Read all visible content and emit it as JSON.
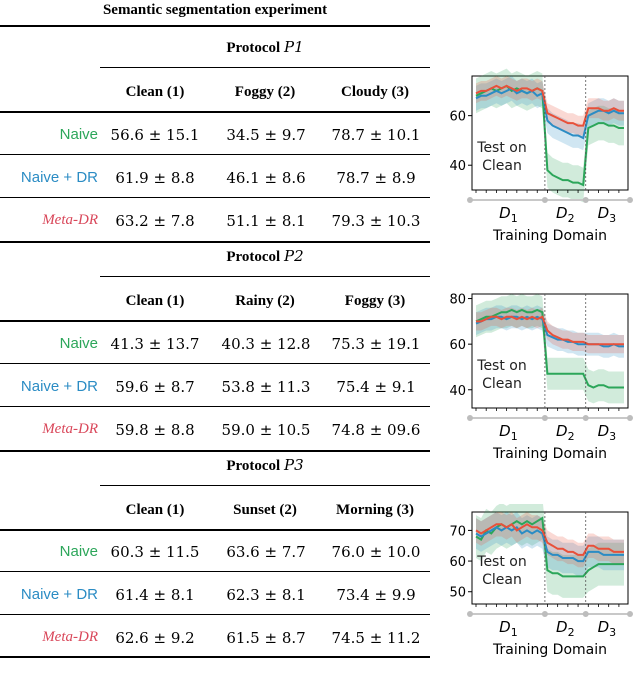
{
  "title": "Semantic segmentation experiment",
  "protocols": [
    {
      "label": "Protocol",
      "var": "P1",
      "columns": [
        "Clean (1)",
        "Foggy (2)",
        "Cloudy (3)"
      ],
      "rows": [
        {
          "method": "Naive",
          "cells": [
            "56.6 ± 15.1",
            "34.5 ± 9.7",
            "78.7 ± 10.1"
          ]
        },
        {
          "method": "Naive + DR",
          "cells": [
            "61.9 ± 8.8",
            "46.1 ± 8.6",
            "78.7 ± 8.9"
          ]
        },
        {
          "method": "Meta-DR",
          "cells": [
            "63.2 ± 7.8",
            "51.1 ± 8.1",
            "79.3 ± 10.3"
          ]
        }
      ]
    },
    {
      "label": "Protocol",
      "var": "P2",
      "columns": [
        "Clean (1)",
        "Rainy (2)",
        "Foggy (3)"
      ],
      "rows": [
        {
          "method": "Naive",
          "cells": [
            "41.3 ± 13.7",
            "40.3 ± 12.8",
            "75.3 ± 19.1"
          ]
        },
        {
          "method": "Naive + DR",
          "cells": [
            "59.6 ± 8.7",
            "53.8 ± 11.3",
            "75.4 ± 9.1"
          ]
        },
        {
          "method": "Meta-DR",
          "cells": [
            "59.8 ± 8.8",
            "59.0 ± 10.5",
            "74.8 ± 09.6"
          ]
        }
      ]
    },
    {
      "label": "Protocol",
      "var": "P3",
      "columns": [
        "Clean (1)",
        "Sunset (2)",
        "Morning (3)"
      ],
      "rows": [
        {
          "method": "Naive",
          "cells": [
            "60.3 ± 11.5",
            "63.6 ± 7.7",
            "76.0 ± 10.0"
          ]
        },
        {
          "method": "Naive + DR",
          "cells": [
            "61.4 ± 8.1",
            "62.3 ± 8.1",
            "73.4 ± 9.9"
          ]
        },
        {
          "method": "Meta-DR",
          "cells": [
            "62.6 ± 9.2",
            "61.5 ± 8.7",
            "74.5 ± 11.2"
          ]
        }
      ]
    }
  ],
  "colors": {
    "naive": "#2ca65a",
    "naive_dr": "#2b8cc4",
    "meta_dr": "#d9475a",
    "meta_line": "#e8503a"
  },
  "chart_data": [
    {
      "type": "line",
      "xlabel": "Training Domain",
      "domain_labels": [
        "D1",
        "D2",
        "D3"
      ],
      "annotation": "Test on\nClean",
      "yticks": [
        40,
        60
      ],
      "ylim": [
        30,
        76
      ],
      "series": [
        {
          "key": "naive",
          "values": [
            68,
            69,
            70,
            71,
            70,
            71,
            72,
            70,
            71,
            70,
            69,
            70,
            71,
            70,
            38,
            36,
            35,
            34,
            34,
            33,
            33,
            32,
            55,
            56,
            57,
            57,
            56,
            56,
            55,
            55
          ]
        },
        {
          "key": "naive_dr",
          "values": [
            67,
            68,
            68,
            69,
            70,
            69,
            70,
            71,
            69,
            70,
            69,
            70,
            68,
            69,
            58,
            56,
            55,
            54,
            53,
            52,
            52,
            51,
            60,
            61,
            62,
            62,
            61,
            62,
            61,
            61
          ]
        },
        {
          "key": "meta_dr",
          "values": [
            69,
            70,
            70,
            71,
            72,
            71,
            72,
            71,
            70,
            71,
            71,
            70,
            71,
            70,
            61,
            60,
            59,
            58,
            57,
            57,
            56,
            56,
            63,
            63,
            63,
            62,
            62,
            63,
            62,
            62
          ]
        }
      ]
    },
    {
      "type": "line",
      "xlabel": "Training Domain",
      "domain_labels": [
        "D1",
        "D2",
        "D3"
      ],
      "annotation": "Test on\nClean",
      "yticks": [
        40,
        60,
        80
      ],
      "ylim": [
        32,
        82
      ],
      "series": [
        {
          "key": "naive",
          "values": [
            70,
            71,
            72,
            72,
            73,
            74,
            74,
            75,
            74,
            75,
            74,
            74,
            75,
            74,
            47,
            47,
            47,
            47,
            47,
            47,
            47,
            47,
            42,
            41,
            42,
            42,
            41,
            41,
            41,
            41
          ]
        },
        {
          "key": "naive_dr",
          "values": [
            69,
            70,
            71,
            71,
            72,
            72,
            71,
            72,
            72,
            71,
            72,
            71,
            72,
            71,
            64,
            63,
            62,
            62,
            61,
            61,
            60,
            60,
            60,
            60,
            60,
            59,
            59,
            60,
            59,
            59
          ]
        },
        {
          "key": "meta_dr",
          "values": [
            70,
            70,
            71,
            72,
            72,
            71,
            72,
            72,
            71,
            72,
            71,
            72,
            71,
            72,
            66,
            64,
            63,
            62,
            62,
            61,
            61,
            61,
            60,
            60,
            60,
            60,
            60,
            60,
            60,
            60
          ]
        }
      ]
    },
    {
      "type": "line",
      "xlabel": "Training Domain",
      "domain_labels": [
        "D1",
        "D2",
        "D3"
      ],
      "annotation": "Test on\nClean",
      "yticks": [
        50,
        60,
        70
      ],
      "ylim": [
        46,
        76
      ],
      "series": [
        {
          "key": "naive",
          "values": [
            68,
            67,
            70,
            69,
            71,
            72,
            71,
            72,
            73,
            72,
            73,
            72,
            73,
            74,
            57,
            56,
            56,
            55,
            55,
            55,
            55,
            55,
            57,
            58,
            59,
            59,
            59,
            59,
            59,
            59
          ]
        },
        {
          "key": "naive_dr",
          "values": [
            69,
            68,
            69,
            70,
            71,
            70,
            71,
            70,
            71,
            69,
            70,
            69,
            70,
            69,
            63,
            62,
            62,
            61,
            61,
            61,
            60,
            60,
            63,
            63,
            63,
            62,
            62,
            62,
            62,
            62
          ]
        },
        {
          "key": "meta_dr",
          "values": [
            70,
            69,
            70,
            71,
            72,
            72,
            71,
            72,
            70,
            71,
            72,
            71,
            71,
            70,
            66,
            65,
            64,
            64,
            63,
            63,
            62,
            62,
            65,
            65,
            64,
            64,
            64,
            63,
            63,
            63
          ]
        }
      ]
    }
  ]
}
